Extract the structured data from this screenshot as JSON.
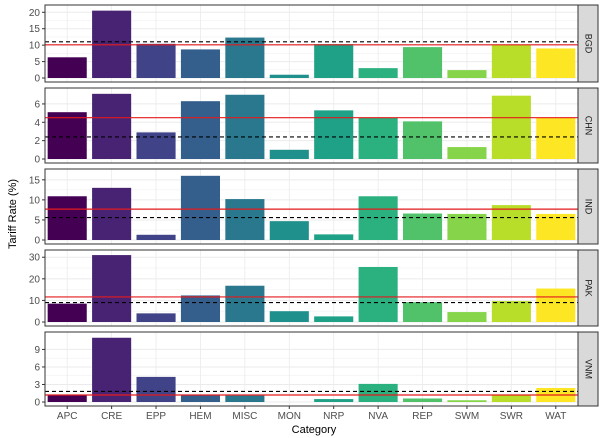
{
  "chart_data": {
    "type": "bar",
    "layout": "faceted-vertical",
    "xlabel": "Category",
    "ylabel": "Tariff Rate (%)",
    "categories": [
      "APC",
      "CRE",
      "EPP",
      "HEM",
      "MISC",
      "MON",
      "NRP",
      "NVA",
      "REP",
      "SWM",
      "SWR",
      "WAT"
    ],
    "bar_colors": [
      "#440154",
      "#482374",
      "#404387",
      "#345F8D",
      "#29788E",
      "#20908C",
      "#1FA187",
      "#2BB07F",
      "#51C26A",
      "#85D44A",
      "#B8DE29",
      "#FDE725"
    ],
    "reference_lines": {
      "red_line_color": "#E41A1C",
      "dashed_line_color": "#000000"
    },
    "grid": true,
    "strip_position": "right",
    "facets": [
      {
        "name": "BGD",
        "ylim": [
          0,
          21
        ],
        "yticks": [
          0,
          5,
          10,
          15,
          20
        ],
        "values": [
          6.3,
          20.5,
          10.4,
          8.7,
          12.3,
          1.0,
          10.3,
          3.0,
          9.4,
          2.4,
          10.2,
          9.0
        ],
        "red_line": 10.1,
        "dashed_line": 11.0
      },
      {
        "name": "CHN",
        "ylim": [
          0,
          7.3
        ],
        "yticks": [
          0,
          2,
          4,
          6
        ],
        "values": [
          5.1,
          7.1,
          2.9,
          6.3,
          7.0,
          1.0,
          5.3,
          4.5,
          4.1,
          1.3,
          6.9,
          4.5
        ],
        "red_line": 4.5,
        "dashed_line": 2.4
      },
      {
        "name": "IND",
        "ylim": [
          0,
          16.7
        ],
        "yticks": [
          0,
          5,
          10,
          15
        ],
        "values": [
          10.9,
          13.0,
          1.3,
          16.0,
          10.2,
          4.7,
          1.4,
          10.9,
          6.6,
          6.5,
          8.7,
          6.5
        ],
        "red_line": 7.7,
        "dashed_line": 5.6
      },
      {
        "name": "PAK",
        "ylim": [
          0,
          31.5
        ],
        "yticks": [
          0,
          10,
          20,
          30
        ],
        "values": [
          8.5,
          31.0,
          4.0,
          12.3,
          16.8,
          5.0,
          2.6,
          25.5,
          9.2,
          4.6,
          9.7,
          15.5
        ],
        "red_line": 11.6,
        "dashed_line": 9.0
      },
      {
        "name": "VNM",
        "ylim": [
          0,
          11.3
        ],
        "yticks": [
          0,
          3,
          6,
          9
        ],
        "values": [
          1.2,
          11.0,
          4.3,
          1.2,
          1.1,
          0.0,
          0.5,
          3.1,
          0.6,
          0.3,
          1.2,
          2.4
        ],
        "red_line": 1.2,
        "dashed_line": 1.8
      }
    ]
  }
}
